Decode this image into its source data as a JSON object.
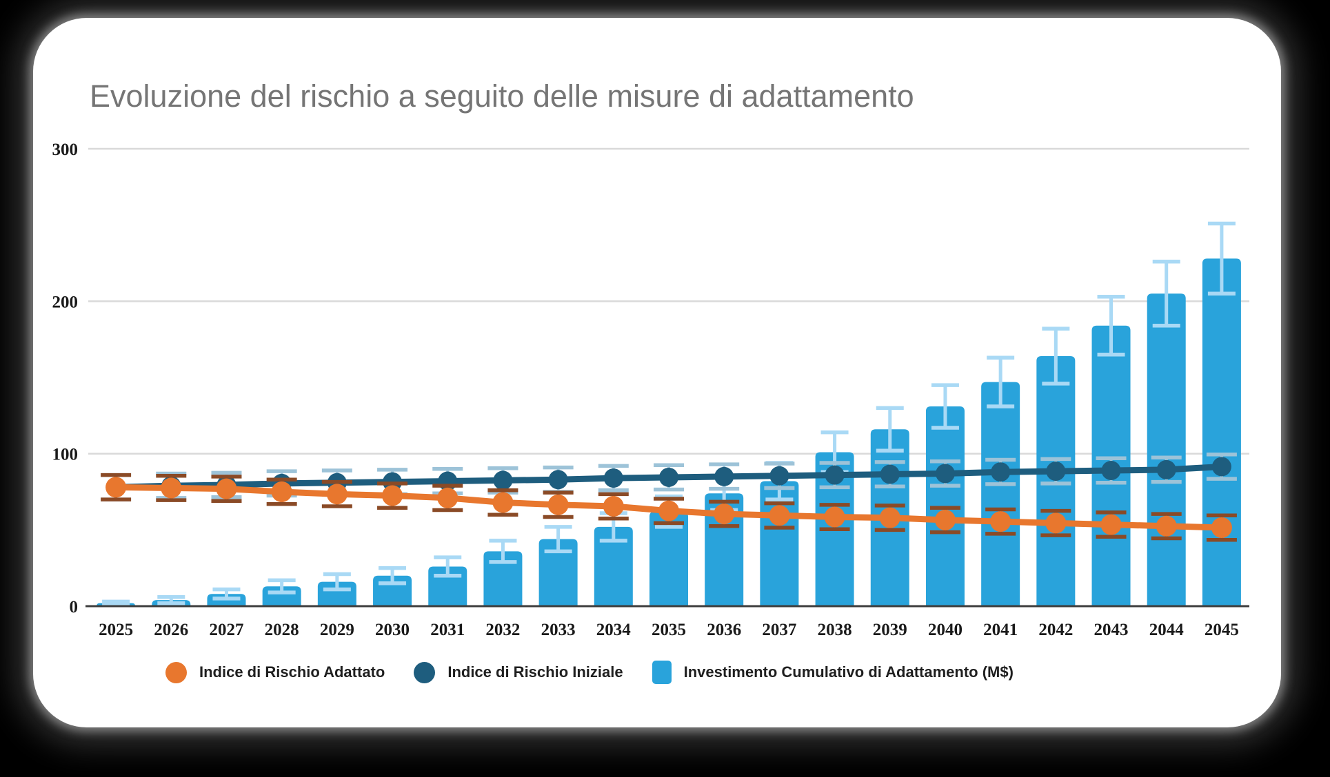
{
  "title": "Evoluzione del rischio a seguito delle misure di adattamento",
  "colors": {
    "background": "#000000",
    "card": "#ffffff",
    "title_text": "#757575",
    "grid_line": "#d9d9d9",
    "axis_line": "#3d3d3d",
    "tick_text": "#1a1a1a",
    "bar_fill": "#29a3db",
    "bar_error": "#a9d9f5",
    "initial_risk_line": "#1e5d7e",
    "initial_risk_error": "#9dc3d8",
    "adapted_risk_line": "#e8772e",
    "adapted_risk_error": "#8a4a26",
    "legend_text": "#1f1f1f"
  },
  "chart_data": {
    "type": "combo (bar + line)",
    "x": [
      2025,
      2026,
      2027,
      2028,
      2029,
      2030,
      2031,
      2032,
      2033,
      2034,
      2035,
      2036,
      2037,
      2038,
      2039,
      2040,
      2041,
      2042,
      2043,
      2044,
      2045
    ],
    "series": [
      {
        "name": "Investimento Cumulativo di Adattamento (M$)",
        "type": "bar",
        "color": "#29a3db",
        "error_color": "#a9d9f5",
        "values": [
          2,
          4,
          8,
          13,
          16,
          20,
          26,
          36,
          44,
          52,
          62,
          74,
          82,
          101,
          116,
          131,
          147,
          164,
          184,
          205,
          228
        ],
        "errors": [
          1,
          2,
          3,
          4,
          5,
          5,
          6,
          7,
          8,
          9,
          10,
          11,
          12,
          13,
          14,
          14,
          16,
          18,
          19,
          21,
          23
        ]
      },
      {
        "name": "Indice di Rischio Iniziale",
        "type": "line",
        "color": "#1e5d7e",
        "error_color": "#9dc3d8",
        "values": [
          78,
          79,
          79.5,
          80.5,
          81,
          81.5,
          82,
          82.5,
          83,
          84,
          84.5,
          85,
          85.5,
          86,
          86.5,
          87,
          88,
          88.5,
          89,
          89.5,
          91.5
        ],
        "errors": [
          8,
          8,
          8,
          8,
          8,
          8,
          8,
          8,
          8,
          8,
          8,
          8,
          8,
          8,
          8,
          8,
          8,
          8,
          8,
          8,
          8
        ]
      },
      {
        "name": "Indice di Rischio Adattato",
        "type": "line",
        "color": "#e8772e",
        "error_color": "#8a4a26",
        "values": [
          78,
          77.5,
          77,
          75,
          73.5,
          72.5,
          71,
          68,
          66.5,
          65.5,
          62.5,
          60.5,
          59.5,
          58.5,
          58,
          56.5,
          55.5,
          54.5,
          53.5,
          52.5,
          51.5
        ],
        "errors": [
          8,
          8,
          8,
          8,
          8,
          8,
          8,
          8,
          8,
          8,
          8,
          8,
          8,
          8,
          8,
          8,
          8,
          8,
          8,
          8,
          8
        ]
      }
    ],
    "title": "Evoluzione del rischio a seguito delle misure di adattamento",
    "xlabel": "",
    "ylabel": "",
    "ylim": [
      0,
      300
    ],
    "yticks": [
      0,
      100,
      200,
      300
    ],
    "grid": true,
    "legend_position": "bottom"
  },
  "legend": [
    {
      "label": "Indice di Rischio Adattato",
      "shape": "circle",
      "color": "#e8772e"
    },
    {
      "label": "Indice di Rischio Iniziale",
      "shape": "circle",
      "color": "#1e5d7e"
    },
    {
      "label": "Investimento Cumulativo di Adattamento (M$)",
      "shape": "square",
      "color": "#29a3db"
    }
  ]
}
